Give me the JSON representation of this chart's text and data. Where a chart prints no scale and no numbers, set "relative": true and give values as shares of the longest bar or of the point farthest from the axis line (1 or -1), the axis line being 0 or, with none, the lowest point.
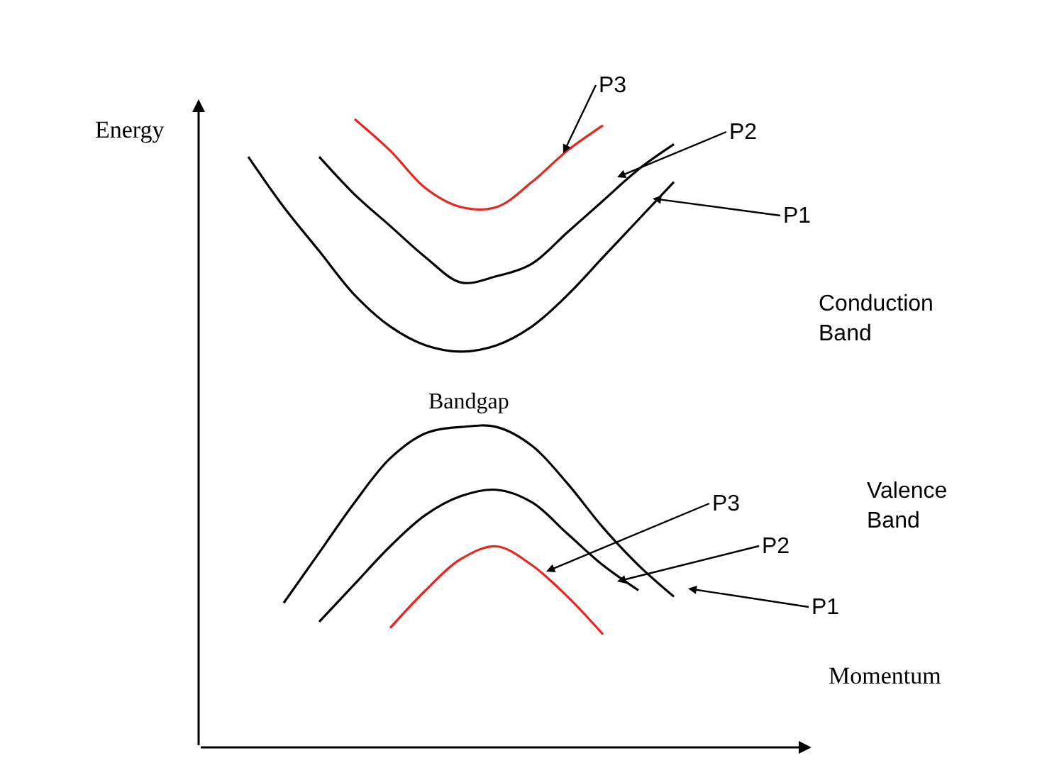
{
  "chart_data": {
    "type": "line",
    "relative": true,
    "xlabel": "Momentum",
    "ylabel": "Energy",
    "line_style": "solid",
    "categories": [
      null,
      null,
      null,
      null,
      null,
      null,
      null,
      null,
      null,
      null,
      null,
      null,
      null,
      null
    ],
    "series": [
      {
        "color": "#000000",
        "values": [
          0.94,
          0.86,
          0.79,
          0.72,
          0.67,
          0.64,
          0.63,
          0.64,
          0.67,
          0.72,
          0.78,
          0.84,
          0.9,
          null
        ]
      },
      {
        "color": "#000000",
        "values": [
          null,
          null,
          0.94,
          0.88,
          0.83,
          0.78,
          0.74,
          0.75,
          0.77,
          0.82,
          0.87,
          0.92,
          0.96,
          null
        ]
      },
      {
        "color": "#e8251e",
        "values": [
          null,
          null,
          null,
          1.0,
          0.95,
          0.89,
          0.86,
          0.86,
          0.9,
          0.95,
          0.99,
          null,
          null,
          null
        ]
      },
      {
        "color": "#000000",
        "values": [
          null,
          0.23,
          0.31,
          0.39,
          0.46,
          0.5,
          0.51,
          0.51,
          0.48,
          0.42,
          0.35,
          0.29,
          0.24,
          null
        ]
      },
      {
        "color": "#000000",
        "values": [
          null,
          null,
          0.2,
          0.26,
          0.32,
          0.37,
          0.4,
          0.41,
          0.39,
          0.34,
          0.29,
          0.25,
          null,
          null
        ]
      },
      {
        "color": "#e8251e",
        "values": [
          null,
          null,
          null,
          null,
          0.19,
          0.25,
          0.3,
          0.32,
          0.29,
          0.24,
          0.18,
          null,
          null,
          null
        ]
      }
    ],
    "annotations": [
      "P3",
      "P2",
      "P1",
      "Conduction Band",
      "Bandgap",
      "Valence Band",
      "P3",
      "P2",
      "P1"
    ]
  }
}
